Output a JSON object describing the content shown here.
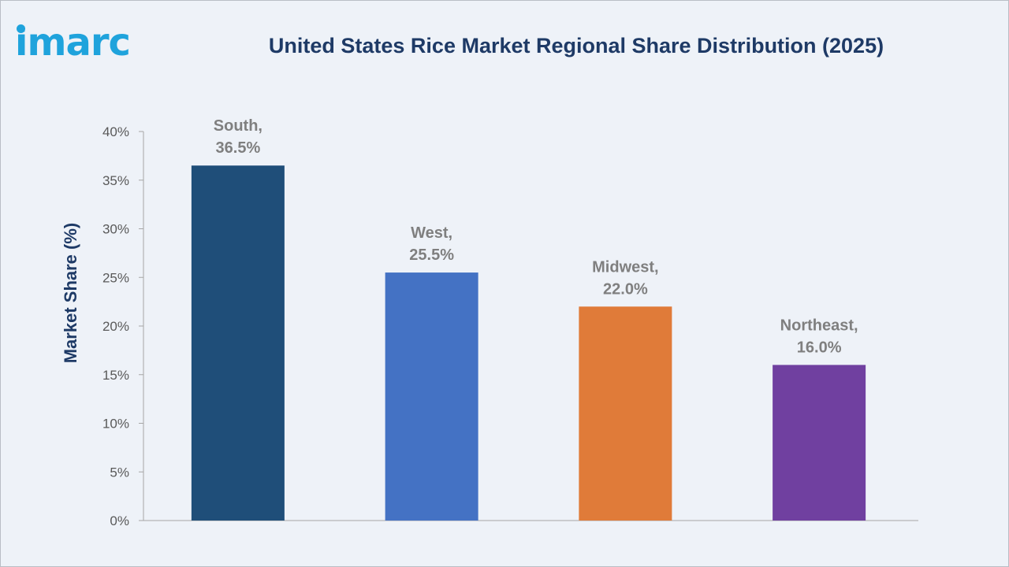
{
  "logo": {
    "text": "imarc",
    "color": "#1fa3dc"
  },
  "chart_data": {
    "type": "bar",
    "title": "United States Rice Market Regional Share Distribution (2025)",
    "xlabel": "",
    "ylabel": "Market Share (%)",
    "ylim": [
      0,
      40
    ],
    "ytick_step": 5,
    "ytick_suffix": "%",
    "grid": false,
    "categories": [
      "South",
      "West",
      "Midwest",
      "Northeast"
    ],
    "values": [
      36.5,
      25.5,
      22.0,
      16.0
    ],
    "data_labels": [
      [
        "South,",
        "36.5%"
      ],
      [
        "West,",
        "25.5%"
      ],
      [
        "Midwest,",
        "22.0%"
      ],
      [
        "Northeast,",
        "16.0%"
      ]
    ],
    "colors": [
      "#1f4e79",
      "#4472c4",
      "#e07b39",
      "#7040a0"
    ],
    "title_color": "#1e3a66",
    "label_color": "#7f7f7f",
    "axis_color": "#a6a6a6"
  }
}
